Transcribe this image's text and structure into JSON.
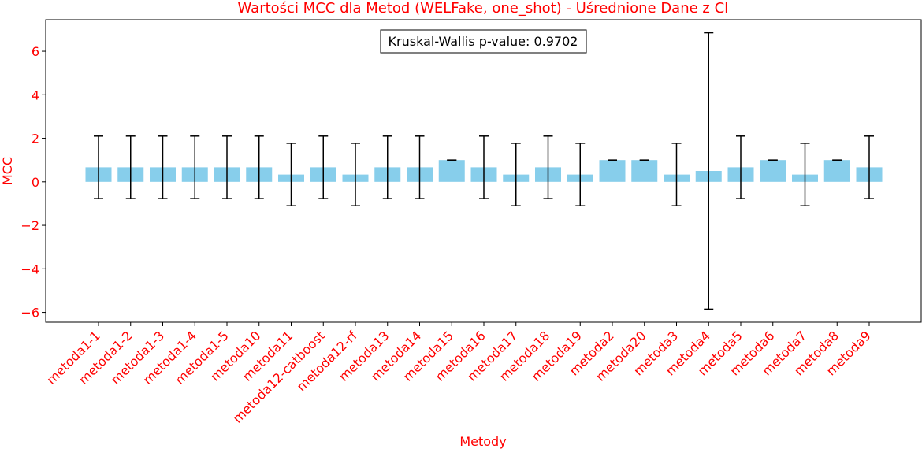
{
  "chart_data": {
    "type": "bar",
    "title": "Wartości MCC dla Metod (WELFake, one_shot) - Uśrednione Dane z CI",
    "xlabel": "Metody",
    "ylabel": "MCC",
    "ylim": [
      -6.45,
      7.45
    ],
    "yticks": [
      -6,
      -4,
      -2,
      0,
      2,
      4,
      6
    ],
    "ytick_labels": [
      "−6",
      "−4",
      "−2",
      "0",
      "2",
      "4",
      "6"
    ],
    "grid": false,
    "annotation": "Kruskal-Wallis p-value: 0.9702",
    "bar_color": "#87ceeb",
    "error_color": "#000000",
    "text_color": "#ff0000",
    "categories": [
      "metoda1-1",
      "metoda1-2",
      "metoda1-3",
      "metoda1-4",
      "metoda1-5",
      "metoda10",
      "metoda11",
      "metoda12-catboost",
      "metoda12-rf",
      "metoda13",
      "metoda14",
      "metoda15",
      "metoda16",
      "metoda17",
      "metoda18",
      "metoda19",
      "metoda2",
      "metoda20",
      "metoda3",
      "metoda4",
      "metoda5",
      "metoda6",
      "metoda7",
      "metoda8",
      "metoda9"
    ],
    "values": [
      0.667,
      0.667,
      0.667,
      0.667,
      0.667,
      0.667,
      0.333,
      0.667,
      0.333,
      0.667,
      0.667,
      1.0,
      0.667,
      0.333,
      0.667,
      0.333,
      1.0,
      1.0,
      0.333,
      0.5,
      0.667,
      1.0,
      0.333,
      1.0,
      0.667
    ],
    "ci_lower": [
      -0.77,
      -0.77,
      -0.77,
      -0.77,
      -0.77,
      -0.77,
      -1.1,
      -0.77,
      -1.1,
      -0.77,
      -0.77,
      1.0,
      -0.77,
      -1.1,
      -0.77,
      -1.1,
      1.0,
      1.0,
      -1.1,
      -5.85,
      -0.77,
      1.0,
      -1.1,
      1.0,
      -0.77
    ],
    "ci_upper": [
      2.1,
      2.1,
      2.1,
      2.1,
      2.1,
      2.1,
      1.77,
      2.1,
      1.77,
      2.1,
      2.1,
      1.0,
      2.1,
      1.77,
      2.1,
      1.77,
      1.0,
      1.0,
      1.77,
      6.85,
      2.1,
      1.0,
      1.77,
      1.0,
      2.1
    ]
  }
}
